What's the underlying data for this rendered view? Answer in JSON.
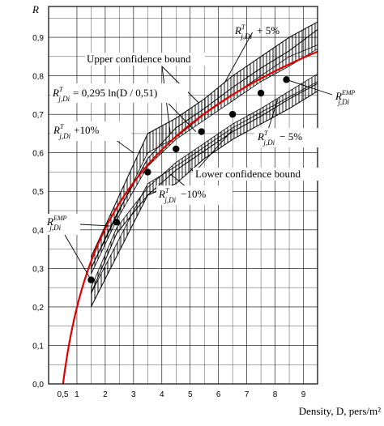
{
  "chart_data": {
    "type": "line",
    "ylabel": "R",
    "xlabel": "Density, D, pers/m²",
    "xlim": [
      0,
      9.5
    ],
    "ylim": [
      0,
      0.98
    ],
    "x_ticks": [
      "0,5",
      "1",
      "2",
      "3",
      "4",
      "5",
      "6",
      "7",
      "8",
      "9"
    ],
    "x_tick_values": [
      0.5,
      1,
      2,
      3,
      4,
      5,
      6,
      7,
      8,
      9
    ],
    "y_ticks": [
      "0,0",
      "0,1",
      "0,2",
      "0,3",
      "0,4",
      "0,5",
      "0,6",
      "0,7",
      "0,8",
      "0,9"
    ],
    "y_tick_values": [
      0.0,
      0.1,
      0.2,
      0.3,
      0.4,
      0.5,
      0.6,
      0.7,
      0.8,
      0.9
    ],
    "grid": true,
    "fit_color": "#e00000",
    "series": [
      {
        "name": "R^EMP j,Di",
        "type": "scatter",
        "x": [
          1.5,
          2.4,
          3.5,
          4.5,
          5.4,
          6.5,
          7.5,
          8.4
        ],
        "y": [
          0.27,
          0.42,
          0.55,
          0.61,
          0.655,
          0.7,
          0.755,
          0.79
        ]
      },
      {
        "name": "R^T j,Di = 0,295ln(D/0,51)",
        "type": "line",
        "formula_a": 0.295,
        "formula_d0": 0.51
      },
      {
        "name": "R^T j,Di + 5%",
        "x": [
          1.5,
          2.4,
          3.5,
          4.5,
          5.5,
          6.5,
          7.5,
          8.5,
          9.5
        ],
        "y_outer": [
          0.3,
          0.44,
          0.585,
          0.665,
          0.715,
          0.77,
          0.82,
          0.865,
          0.92
        ],
        "y_inner": [
          0.285,
          0.425,
          0.565,
          0.635,
          0.685,
          0.735,
          0.785,
          0.825,
          0.87
        ]
      },
      {
        "name": "R^T j,Di − 5%",
        "x": [
          1.5,
          2.4,
          3.5,
          4.5,
          5.5,
          6.5,
          7.5,
          8.5,
          9.5
        ],
        "y_outer": [
          0.235,
          0.39,
          0.49,
          0.555,
          0.605,
          0.655,
          0.695,
          0.74,
          0.78
        ],
        "y_inner": [
          0.25,
          0.405,
          0.51,
          0.575,
          0.625,
          0.675,
          0.715,
          0.76,
          0.805
        ]
      },
      {
        "name": "R^T j,Di + 10%",
        "x": [
          1.5,
          3.5,
          4.5,
          5.5,
          6.5,
          7.5,
          8.5,
          9.5
        ],
        "y_outer": [
          0.33,
          0.65,
          0.69,
          0.74,
          0.8,
          0.85,
          0.9,
          0.94
        ],
        "y_inner": [
          0.3,
          0.6,
          0.64,
          0.7,
          0.75,
          0.8,
          0.85,
          0.88
        ]
      },
      {
        "name": "R^T j,Di − 10%",
        "x": [
          1.5,
          3.5,
          4.5,
          5.5,
          6.5,
          7.5,
          8.5,
          9.5
        ],
        "y_outer": [
          0.2,
          0.49,
          0.52,
          0.585,
          0.635,
          0.675,
          0.715,
          0.76
        ],
        "y_inner": [
          0.235,
          0.52,
          0.565,
          0.615,
          0.665,
          0.705,
          0.745,
          0.785
        ]
      }
    ],
    "annotations": {
      "upper_bound": "Upper confidence bound",
      "lower_bound": "Lower confidence bound",
      "formula_text": "= 0,295 ln(D / 0,51)",
      "plus5_text": "+ 5%",
      "minus5_text": "− 5%",
      "plus10_text": "+10%",
      "minus10_text": "−10%",
      "r_letter": "R",
      "sub_text": "j,Di",
      "sup_t": "T",
      "sup_emp": "EMP"
    }
  }
}
